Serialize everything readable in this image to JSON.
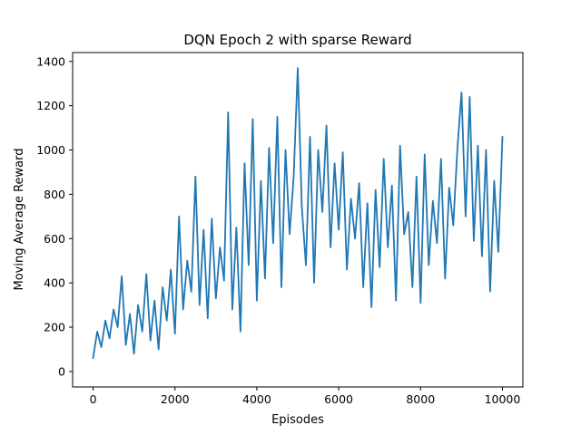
{
  "chart_data": {
    "type": "line",
    "title": "DQN Epoch 2 with sparse Reward",
    "xlabel": "Episodes",
    "ylabel": "Moving Average Reward",
    "xlim": [
      -500,
      10500
    ],
    "ylim": [
      -70,
      1440
    ],
    "xticks": [
      0,
      2000,
      4000,
      6000,
      8000,
      10000
    ],
    "yticks": [
      0,
      200,
      400,
      600,
      800,
      1000,
      1200,
      1400
    ],
    "xtick_labels": [
      "0",
      "2000",
      "4000",
      "6000",
      "8000",
      "10000"
    ],
    "ytick_labels": [
      "0",
      "200",
      "400",
      "600",
      "800",
      "1000",
      "1200",
      "1400"
    ],
    "grid": false,
    "legend": "none",
    "series": [
      {
        "color": "#1f77b4",
        "x": [
          0,
          100,
          200,
          300,
          400,
          500,
          600,
          700,
          800,
          900,
          1000,
          1100,
          1200,
          1300,
          1400,
          1500,
          1600,
          1700,
          1800,
          1900,
          2000,
          2100,
          2200,
          2300,
          2400,
          2500,
          2600,
          2700,
          2800,
          2900,
          3000,
          3100,
          3200,
          3300,
          3400,
          3500,
          3600,
          3700,
          3800,
          3900,
          4000,
          4100,
          4200,
          4300,
          4400,
          4500,
          4600,
          4700,
          4800,
          4900,
          5000,
          5100,
          5200,
          5300,
          5400,
          5500,
          5600,
          5700,
          5800,
          5900,
          6000,
          6100,
          6200,
          6300,
          6400,
          6500,
          6600,
          6700,
          6800,
          6900,
          7000,
          7100,
          7200,
          7300,
          7400,
          7500,
          7600,
          7700,
          7800,
          7900,
          8000,
          8100,
          8200,
          8300,
          8400,
          8500,
          8600,
          8700,
          8800,
          8900,
          9000,
          9100,
          9200,
          9300,
          9400,
          9500,
          9600,
          9700,
          9800,
          9900,
          10000
        ],
        "values": [
          60,
          180,
          110,
          230,
          150,
          280,
          200,
          430,
          120,
          260,
          80,
          300,
          180,
          440,
          140,
          320,
          100,
          380,
          230,
          460,
          170,
          700,
          280,
          500,
          360,
          880,
          300,
          640,
          240,
          690,
          330,
          560,
          410,
          1170,
          280,
          650,
          180,
          940,
          480,
          1140,
          320,
          860,
          420,
          1010,
          580,
          1150,
          380,
          1000,
          620,
          880,
          1370,
          740,
          480,
          1060,
          400,
          1000,
          720,
          1110,
          560,
          940,
          640,
          990,
          460,
          780,
          600,
          850,
          380,
          760,
          290,
          820,
          470,
          960,
          560,
          840,
          320,
          1020,
          620,
          720,
          380,
          880,
          310,
          980,
          480,
          770,
          580,
          960,
          420,
          830,
          660,
          1010,
          1260,
          700,
          1240,
          590,
          1020,
          520,
          1000,
          360,
          860,
          540,
          1060
        ]
      }
    ]
  }
}
